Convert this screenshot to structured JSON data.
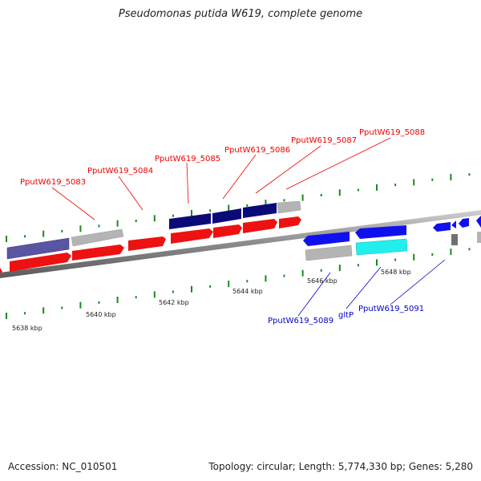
{
  "title": "Pseudomonas putida W619, complete genome",
  "footer": {
    "accession": "Accession: NC_010501",
    "summary": "Topology: circular; Length: 5,774,330 bp; Genes: 5,280"
  },
  "colors": {
    "forward_gene": "#ee1111",
    "reverse_gene": "#1010ee",
    "cds_forward": "#0a0a78",
    "cds_faded": "#5a55a0",
    "other": "#b4b4b4",
    "trna": "#22eeee",
    "tick": "#1a8a1a"
  },
  "scale_labels": [
    "5638 kbp",
    "5640 kbp",
    "5642 kbp",
    "5644 kbp",
    "5646 kbp",
    "5648 kbp"
  ],
  "gene_labels_top": [
    "PputW619_5083",
    "PputW619_5084",
    "PputW619_5085",
    "PputW619_5086",
    "PputW619_5087",
    "PputW619_5088"
  ],
  "gene_labels_bottom": [
    "PputW619_5089",
    "gltP",
    "PputW619_5091"
  ]
}
